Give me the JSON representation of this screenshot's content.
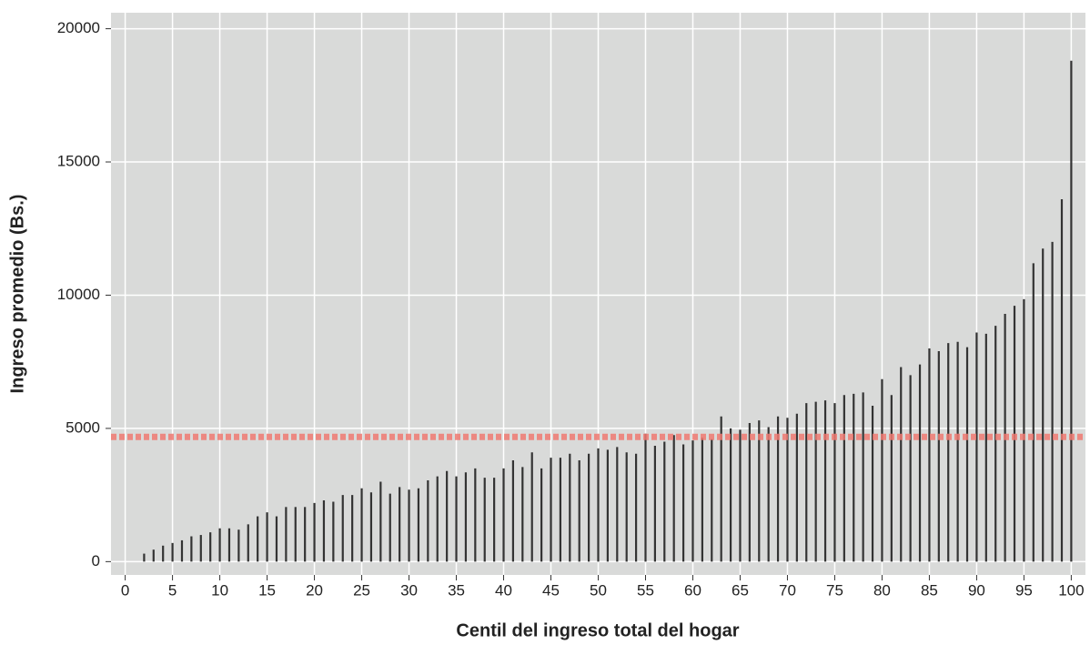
{
  "chart_data": {
    "type": "needle",
    "xlabel": "Centil del ingreso total del hogar",
    "ylabel": "Ingreso promedio (Bs.)",
    "x": [
      2,
      3,
      4,
      5,
      6,
      7,
      8,
      9,
      10,
      11,
      12,
      13,
      14,
      15,
      16,
      17,
      18,
      19,
      20,
      21,
      22,
      23,
      24,
      25,
      26,
      27,
      28,
      29,
      30,
      31,
      32,
      33,
      34,
      35,
      36,
      37,
      38,
      39,
      40,
      41,
      42,
      43,
      44,
      45,
      46,
      47,
      48,
      49,
      50,
      51,
      52,
      53,
      54,
      55,
      56,
      57,
      58,
      59,
      60,
      61,
      62,
      63,
      64,
      65,
      66,
      67,
      68,
      69,
      70,
      71,
      72,
      73,
      74,
      75,
      76,
      77,
      78,
      79,
      80,
      81,
      82,
      83,
      84,
      85,
      86,
      87,
      88,
      89,
      90,
      91,
      92,
      93,
      94,
      95,
      96,
      97,
      98,
      99,
      100
    ],
    "values": [
      300,
      450,
      600,
      700,
      800,
      950,
      1000,
      1100,
      1250,
      1250,
      1200,
      1400,
      1700,
      1850,
      1700,
      2050,
      2050,
      2050,
      2200,
      2300,
      2250,
      2500,
      2500,
      2750,
      2600,
      3000,
      2550,
      2800,
      2700,
      2750,
      3050,
      3200,
      3400,
      3200,
      3350,
      3500,
      3150,
      3150,
      3500,
      3800,
      3550,
      4100,
      3500,
      3900,
      3900,
      4050,
      3800,
      4050,
      4250,
      4200,
      4300,
      4100,
      4050,
      4800,
      4350,
      4500,
      4750,
      4400,
      4550,
      4650,
      4600,
      5450,
      5000,
      4950,
      5200,
      5300,
      5050,
      5450,
      5400,
      5550,
      5950,
      6000,
      6050,
      5950,
      6250,
      6300,
      6350,
      5850,
      6850,
      6250,
      7300,
      7000,
      7400,
      8000,
      7900,
      8200,
      8250,
      8050,
      8600,
      8550,
      8850,
      9300,
      9600,
      9850,
      11200,
      11750,
      12000,
      13600,
      18800
    ],
    "color": "#333333",
    "hline": 4680,
    "hline_color": "#f07a72",
    "xlim": [
      -1.5,
      101.5
    ],
    "xticks": [
      0,
      5,
      10,
      15,
      20,
      25,
      30,
      35,
      40,
      45,
      50,
      55,
      60,
      65,
      70,
      75,
      80,
      85,
      90,
      95,
      100
    ],
    "ylim": [
      -500,
      20600
    ],
    "yticks": [
      0,
      5000,
      10000,
      15000,
      20000
    ],
    "grid": true
  }
}
